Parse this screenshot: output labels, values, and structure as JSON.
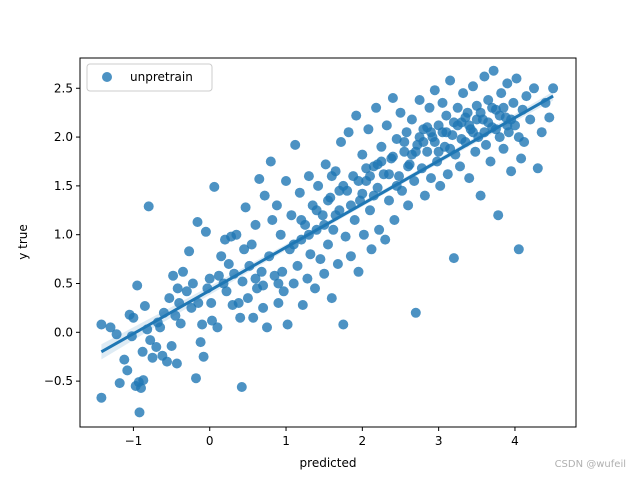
{
  "chart_data": {
    "type": "scatter",
    "xlabel": "predicted",
    "ylabel": "y true",
    "xlim": [
      -1.7,
      4.8
    ],
    "ylim": [
      -0.97,
      2.81
    ],
    "xticks": [
      "−1",
      "0",
      "1",
      "2",
      "3",
      "4"
    ],
    "yticks": [
      "−0.5",
      "0.0",
      "0.5",
      "1.0",
      "1.5",
      "2.0",
      "2.5"
    ],
    "legend": {
      "position": "upper-left",
      "label": "unpretrain"
    },
    "grid": false,
    "color": "#1f77b4",
    "regression_line": {
      "x": [
        -1.42,
        4.5
      ],
      "y": [
        -0.2,
        2.42
      ]
    },
    "series": [
      {
        "name": "unpretrain",
        "points": [
          [
            -1.42,
            0.08
          ],
          [
            -1.42,
            -0.67
          ],
          [
            -1.3,
            0.05
          ],
          [
            -1.22,
            -0.02
          ],
          [
            -1.18,
            -0.52
          ],
          [
            -1.12,
            -0.28
          ],
          [
            -1.08,
            -0.39
          ],
          [
            -1.05,
            0.18
          ],
          [
            -1.02,
            -0.04
          ],
          [
            -1.0,
            0.15
          ],
          [
            -0.97,
            -0.55
          ],
          [
            -0.95,
            0.48
          ],
          [
            -0.93,
            -0.51
          ],
          [
            -0.92,
            -0.82
          ],
          [
            -0.9,
            -0.57
          ],
          [
            -0.88,
            -0.2
          ],
          [
            -0.87,
            -0.49
          ],
          [
            -0.85,
            0.27
          ],
          [
            -0.82,
            0.03
          ],
          [
            -0.8,
            1.29
          ],
          [
            -0.78,
            -0.08
          ],
          [
            -0.75,
            -0.26
          ],
          [
            -0.7,
            -0.15
          ],
          [
            -0.68,
            0.1
          ],
          [
            -0.65,
            0.05
          ],
          [
            -0.62,
            -0.24
          ],
          [
            -0.6,
            0.2
          ],
          [
            -0.56,
            -0.3
          ],
          [
            -0.53,
            0.35
          ],
          [
            -0.5,
            -0.14
          ],
          [
            -0.48,
            0.58
          ],
          [
            -0.45,
            0.17
          ],
          [
            -0.43,
            -0.32
          ],
          [
            -0.42,
            0.45
          ],
          [
            -0.4,
            0.3
          ],
          [
            -0.38,
            0.09
          ],
          [
            -0.35,
            0.62
          ],
          [
            -0.3,
            0.42
          ],
          [
            -0.27,
            0.83
          ],
          [
            -0.24,
            0.25
          ],
          [
            -0.22,
            0.5
          ],
          [
            -0.18,
            -0.47
          ],
          [
            -0.16,
            1.13
          ],
          [
            -0.15,
            0.3
          ],
          [
            -0.12,
            -0.1
          ],
          [
            -0.1,
            0.08
          ],
          [
            -0.08,
            -0.25
          ],
          [
            -0.05,
            1.03
          ],
          [
            -0.03,
            0.45
          ],
          [
            0.0,
            0.55
          ],
          [
            0.02,
            0.3
          ],
          [
            0.03,
            0.12
          ],
          [
            0.06,
            1.49
          ],
          [
            0.1,
            0.05
          ],
          [
            0.12,
            0.58
          ],
          [
            0.15,
            0.78
          ],
          [
            0.18,
            0.5
          ],
          [
            0.2,
            0.95
          ],
          [
            0.22,
            0.42
          ],
          [
            0.25,
            0.7
          ],
          [
            0.28,
            0.98
          ],
          [
            0.3,
            0.28
          ],
          [
            0.32,
            0.6
          ],
          [
            0.35,
            1.0
          ],
          [
            0.38,
            0.3
          ],
          [
            0.4,
            0.15
          ],
          [
            0.42,
            -0.56
          ],
          [
            0.43,
            0.52
          ],
          [
            0.45,
            0.85
          ],
          [
            0.47,
            1.28
          ],
          [
            0.5,
            0.35
          ],
          [
            0.52,
            0.68
          ],
          [
            0.55,
            0.9
          ],
          [
            0.57,
            0.15
          ],
          [
            0.6,
            1.1
          ],
          [
            0.62,
            0.45
          ],
          [
            0.65,
            1.57
          ],
          [
            0.68,
            0.62
          ],
          [
            0.7,
            0.25
          ],
          [
            0.72,
            1.4
          ],
          [
            0.75,
            0.05
          ],
          [
            0.78,
            0.78
          ],
          [
            0.8,
            1.75
          ],
          [
            0.82,
            1.15
          ],
          [
            0.85,
            0.58
          ],
          [
            0.88,
            1.3
          ],
          [
            0.9,
            0.3
          ],
          [
            0.93,
            1.0
          ],
          [
            0.95,
            0.62
          ],
          [
            0.97,
            0.42
          ],
          [
            1.0,
            1.55
          ],
          [
            1.02,
            0.08
          ],
          [
            1.05,
            0.85
          ],
          [
            1.07,
            1.2
          ],
          [
            1.1,
            0.5
          ],
          [
            1.12,
            1.92
          ],
          [
            1.15,
            0.68
          ],
          [
            1.18,
            1.43
          ],
          [
            1.2,
            0.95
          ],
          [
            1.22,
            0.28
          ],
          [
            1.25,
            1.1
          ],
          [
            1.28,
            0.55
          ],
          [
            1.3,
            1.6
          ],
          [
            1.32,
            0.8
          ],
          [
            1.35,
            1.3
          ],
          [
            1.38,
            0.45
          ],
          [
            1.4,
            1.05
          ],
          [
            1.42,
            1.5
          ],
          [
            1.45,
            0.75
          ],
          [
            1.48,
            1.2
          ],
          [
            1.5,
            0.6
          ],
          [
            1.52,
            1.72
          ],
          [
            1.55,
            0.9
          ],
          [
            1.58,
            1.38
          ],
          [
            1.6,
            0.35
          ],
          [
            1.62,
            1.05
          ],
          [
            1.65,
            1.65
          ],
          [
            1.68,
            0.7
          ],
          [
            1.7,
            1.25
          ],
          [
            1.72,
            1.95
          ],
          [
            1.75,
            0.08
          ],
          [
            1.78,
            0.98
          ],
          [
            1.8,
            1.45
          ],
          [
            1.82,
            2.05
          ],
          [
            1.85,
            0.78
          ],
          [
            1.88,
            1.6
          ],
          [
            1.9,
            1.15
          ],
          [
            1.92,
            2.22
          ],
          [
            1.95,
            0.62
          ],
          [
            1.97,
            1.35
          ],
          [
            2.0,
            1.82
          ],
          [
            2.02,
            1.0
          ],
          [
            2.05,
            1.55
          ],
          [
            2.08,
            2.08
          ],
          [
            2.1,
            1.25
          ],
          [
            2.12,
            0.85
          ],
          [
            2.15,
            1.7
          ],
          [
            2.18,
            2.3
          ],
          [
            2.2,
            1.48
          ],
          [
            2.22,
            1.05
          ],
          [
            2.25,
            1.9
          ],
          [
            2.28,
            1.62
          ],
          [
            2.3,
            0.95
          ],
          [
            2.32,
            2.12
          ],
          [
            2.35,
            1.35
          ],
          [
            2.38,
            1.78
          ],
          [
            2.4,
            2.4
          ],
          [
            2.42,
            1.15
          ],
          [
            2.45,
            1.98
          ],
          [
            2.48,
            1.6
          ],
          [
            2.5,
            2.25
          ],
          [
            2.52,
            1.45
          ],
          [
            2.55,
            1.85
          ],
          [
            2.58,
            2.05
          ],
          [
            2.6,
            1.3
          ],
          [
            2.62,
            1.72
          ],
          [
            2.65,
            2.18
          ],
          [
            2.68,
            1.55
          ],
          [
            2.7,
            0.2
          ],
          [
            2.72,
            1.92
          ],
          [
            2.75,
            2.38
          ],
          [
            2.78,
            1.68
          ],
          [
            2.8,
            2.08
          ],
          [
            2.82,
            1.4
          ],
          [
            2.85,
            1.85
          ],
          [
            2.88,
            2.3
          ],
          [
            2.9,
            1.58
          ],
          [
            2.92,
            2.0
          ],
          [
            2.95,
            2.48
          ],
          [
            2.98,
            1.75
          ],
          [
            3.0,
            2.12
          ],
          [
            3.02,
            1.5
          ],
          [
            3.05,
            2.35
          ],
          [
            3.08,
            1.9
          ],
          [
            3.1,
            2.22
          ],
          [
            3.12,
            1.62
          ],
          [
            3.15,
            2.58
          ],
          [
            3.18,
            2.02
          ],
          [
            3.2,
            0.76
          ],
          [
            3.22,
            1.82
          ],
          [
            3.25,
            2.3
          ],
          [
            3.28,
            1.7
          ],
          [
            3.3,
            2.15
          ],
          [
            3.32,
            2.45
          ],
          [
            3.35,
            1.95
          ],
          [
            3.38,
            2.25
          ],
          [
            3.4,
            1.58
          ],
          [
            3.42,
            2.08
          ],
          [
            3.45,
            2.52
          ],
          [
            3.48,
            1.85
          ],
          [
            3.5,
            2.32
          ],
          [
            3.52,
            2.0
          ],
          [
            3.55,
            1.4
          ],
          [
            3.58,
            2.18
          ],
          [
            3.6,
            2.62
          ],
          [
            3.62,
            1.92
          ],
          [
            3.65,
            2.38
          ],
          [
            3.68,
            1.75
          ],
          [
            3.7,
            2.1
          ],
          [
            3.72,
            2.68
          ],
          [
            3.75,
            2.28
          ],
          [
            3.78,
            1.2
          ],
          [
            3.8,
            2.0
          ],
          [
            3.82,
            2.45
          ],
          [
            3.85,
            1.88
          ],
          [
            3.88,
            2.2
          ],
          [
            3.9,
            2.55
          ],
          [
            3.92,
            2.05
          ],
          [
            3.95,
            1.65
          ],
          [
            3.98,
            2.35
          ],
          [
            4.0,
            2.12
          ],
          [
            4.02,
            2.6
          ],
          [
            4.05,
            0.85
          ],
          [
            4.08,
            1.78
          ],
          [
            4.1,
            2.28
          ],
          [
            4.12,
            1.95
          ],
          [
            4.15,
            2.42
          ],
          [
            4.2,
            2.18
          ],
          [
            4.25,
            2.5
          ],
          [
            4.3,
            1.68
          ],
          [
            4.35,
            2.05
          ],
          [
            4.4,
            2.35
          ],
          [
            4.45,
            2.2
          ],
          [
            4.5,
            2.5
          ],
          [
            1.75,
            1.5
          ],
          [
            1.85,
            1.3
          ],
          [
            1.95,
            1.55
          ],
          [
            2.05,
            1.68
          ],
          [
            2.15,
            1.4
          ],
          [
            2.25,
            1.75
          ],
          [
            2.35,
            1.62
          ],
          [
            2.45,
            1.5
          ],
          [
            2.55,
            1.95
          ],
          [
            2.65,
            1.82
          ],
          [
            2.75,
            2.0
          ],
          [
            2.85,
            2.1
          ],
          [
            2.95,
            1.95
          ],
          [
            3.05,
            2.05
          ],
          [
            3.15,
            1.88
          ],
          [
            3.25,
            2.12
          ],
          [
            3.35,
            2.2
          ],
          [
            3.45,
            2.05
          ],
          [
            3.55,
            2.25
          ],
          [
            3.65,
            2.15
          ],
          [
            3.75,
            2.08
          ],
          [
            3.85,
            2.3
          ],
          [
            3.95,
            2.18
          ],
          [
            4.05,
            2.0
          ],
          [
            1.6,
            1.6
          ],
          [
            1.7,
            1.45
          ],
          [
            2.0,
            1.42
          ],
          [
            2.1,
            1.6
          ],
          [
            2.2,
            1.72
          ],
          [
            2.4,
            1.8
          ],
          [
            2.6,
            1.7
          ],
          [
            2.7,
            1.85
          ],
          [
            2.8,
            1.95
          ],
          [
            2.9,
            2.05
          ],
          [
            3.0,
            1.85
          ],
          [
            3.1,
            2.05
          ],
          [
            3.2,
            2.15
          ],
          [
            3.3,
            1.98
          ],
          [
            3.4,
            2.12
          ],
          [
            3.5,
            2.18
          ],
          [
            3.6,
            2.05
          ],
          [
            3.7,
            2.3
          ],
          [
            3.8,
            2.22
          ],
          [
            3.9,
            2.12
          ],
          [
            1.3,
            1.0
          ],
          [
            1.4,
            1.25
          ],
          [
            1.5,
            1.1
          ],
          [
            1.55,
            1.35
          ],
          [
            1.65,
            1.2
          ],
          [
            0.9,
            0.5
          ],
          [
            0.7,
            0.48
          ],
          [
            0.6,
            0.55
          ],
          [
            1.1,
            0.9
          ],
          [
            1.2,
            1.15
          ]
        ]
      }
    ]
  },
  "watermark": "CSDN @wufeil"
}
